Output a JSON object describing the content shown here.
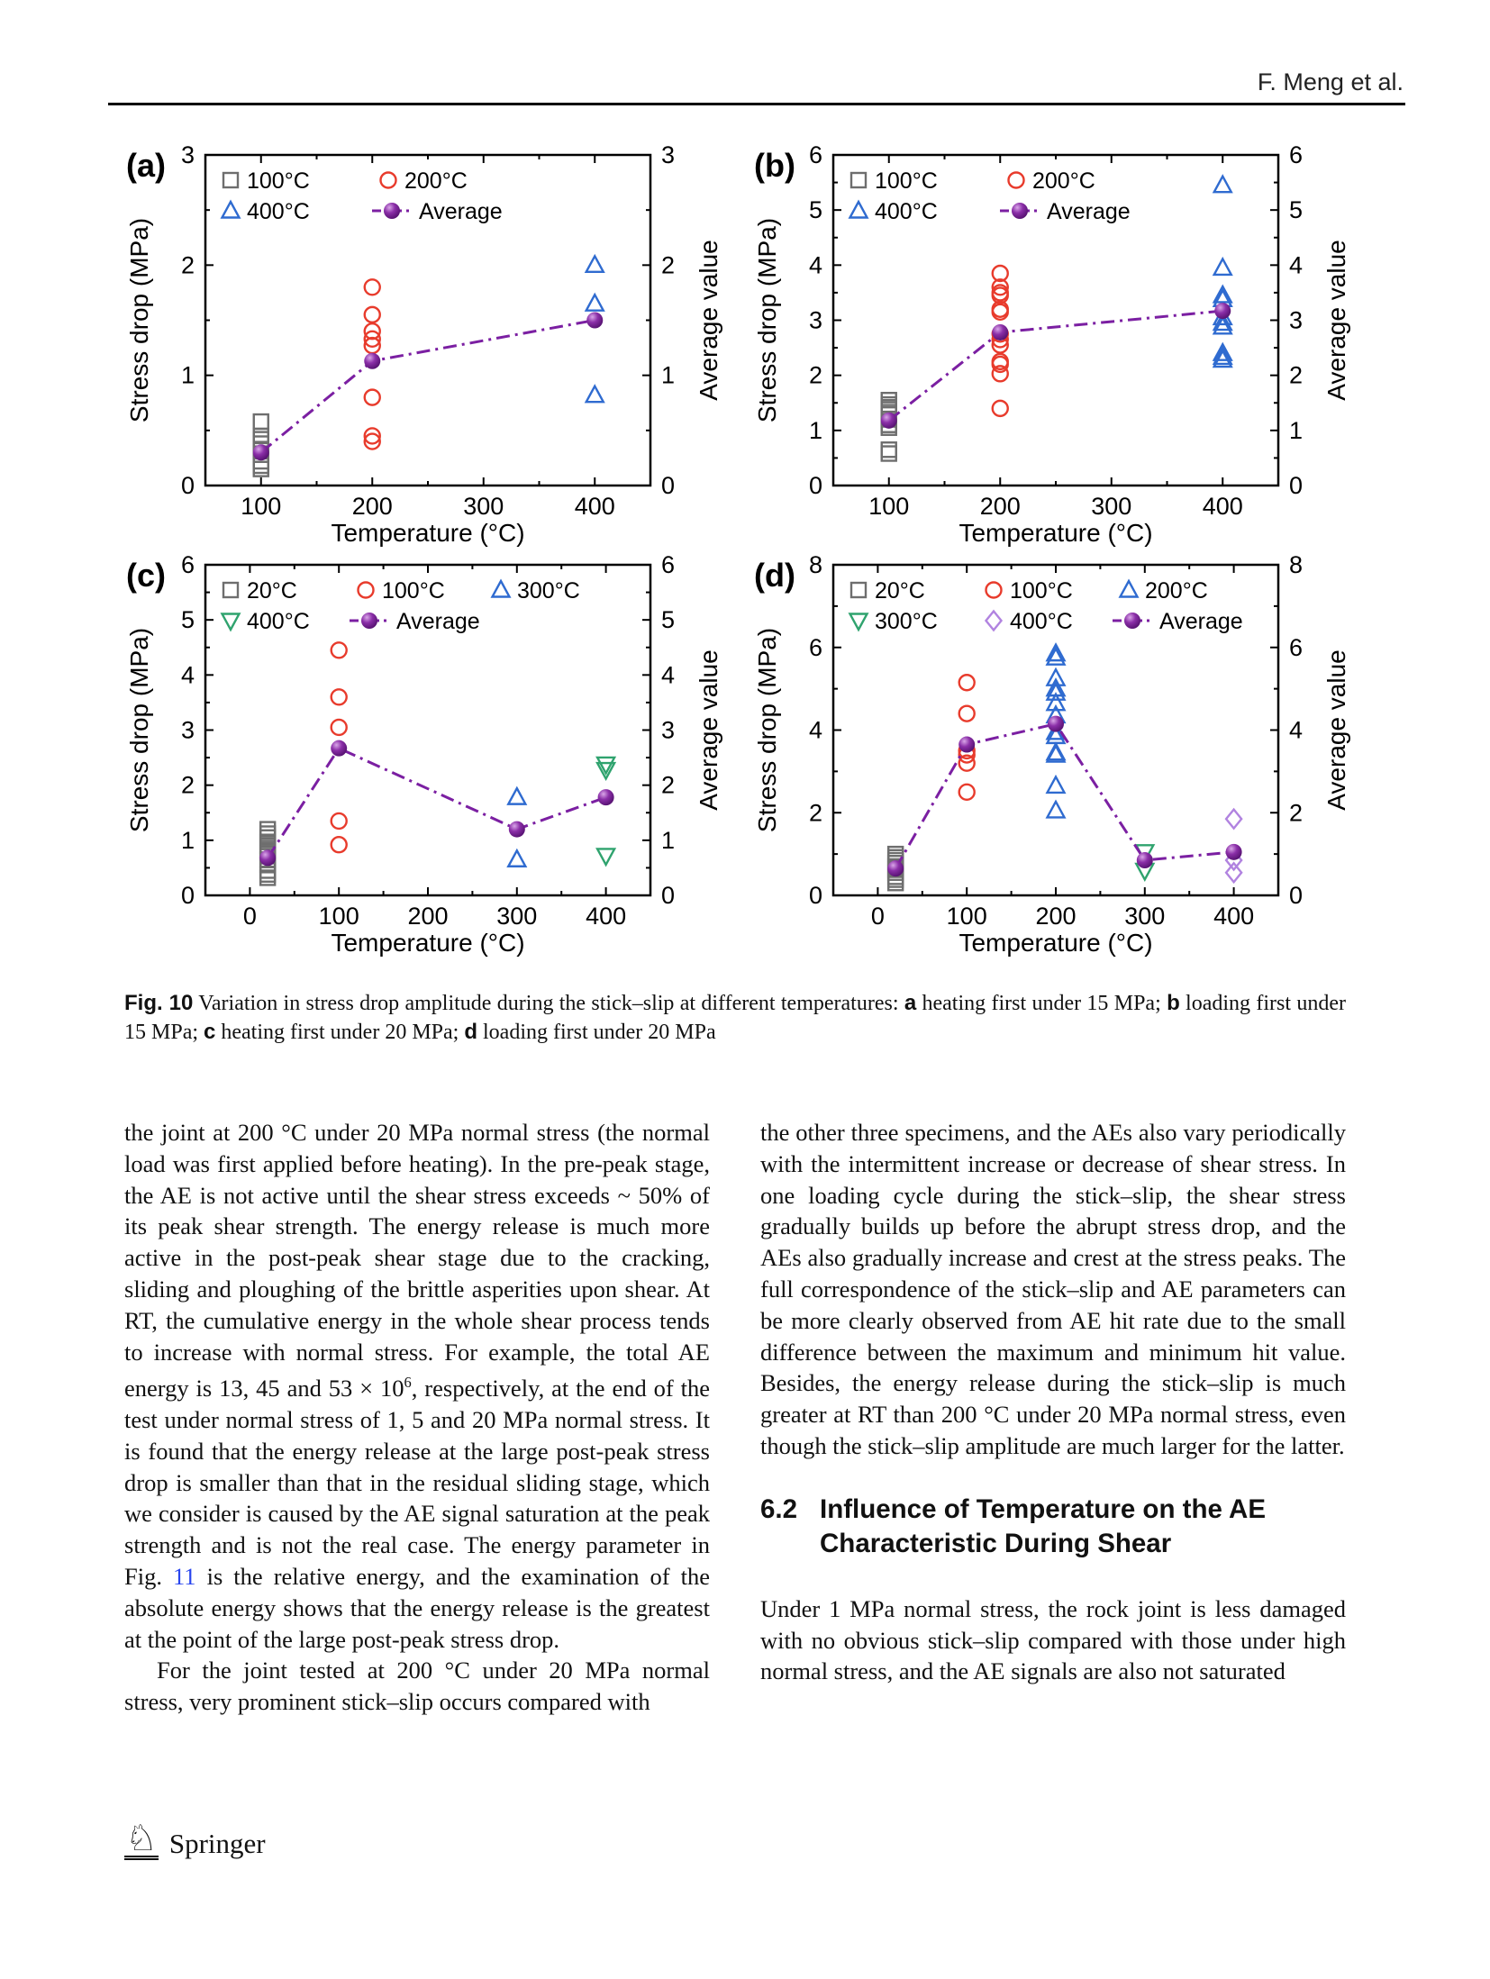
{
  "page": {
    "header_author": "F. Meng et al.",
    "footer": {
      "logo_text": "Springer",
      "horse_icon": "♘"
    },
    "link_color": "#2a46ee"
  },
  "figure": {
    "caption": [
      {
        "t": "figlab",
        "s": "Fig. 10"
      },
      {
        "t": "n",
        "s": "  Variation in stress drop amplitude during the stick–slip at different temperatures: "
      },
      {
        "t": "panlet",
        "s": "a"
      },
      {
        "t": "n",
        "s": " heating first under 15 MPa; "
      },
      {
        "t": "panlet",
        "s": "b"
      },
      {
        "t": "n",
        "s": " loading first under 15 MPa; "
      },
      {
        "t": "panlet",
        "s": "c"
      },
      {
        "t": "n",
        "s": " heating first under 20 MPa; "
      },
      {
        "t": "panlet",
        "s": "d"
      },
      {
        "t": "n",
        "s": " loading first under 20 MPa"
      }
    ]
  },
  "chart_data": [
    {
      "panel": "(a)",
      "type": "scatter",
      "xlabel": "Temperature (°C)",
      "ylabel_left": "Stress drop (MPa)",
      "ylabel_right": "Average value",
      "xlim": [
        50,
        450
      ],
      "xticks": [
        100,
        200,
        300,
        400
      ],
      "xminor": 50,
      "ylim": [
        0,
        3
      ],
      "yticks": [
        0,
        1,
        2,
        3
      ],
      "yminor": 0.5,
      "legend_rows": [
        [
          "100°C",
          "200°C"
        ],
        [
          "400°C",
          "Average"
        ]
      ],
      "legend_cols": [
        0,
        175
      ],
      "series": [
        {
          "label": "100°C",
          "marker": "square",
          "color": "#6e6e6e",
          "x": 100,
          "y": [
            0.58,
            0.45,
            0.42,
            0.38,
            0.33,
            0.28,
            0.22,
            0.18,
            0.15
          ]
        },
        {
          "label": "200°C",
          "marker": "circle",
          "color": "#e83b2c",
          "x": 200,
          "y": [
            1.8,
            1.55,
            1.4,
            1.33,
            1.27,
            0.8,
            0.45,
            0.4
          ]
        },
        {
          "label": "400°C",
          "marker": "triangle-up",
          "color": "#2f6bd0",
          "x": 400,
          "y": [
            2.0,
            1.65,
            0.82
          ]
        },
        {
          "label": "Average",
          "marker": "average",
          "color": "#7b1fa2",
          "points": [
            [
              100,
              0.3
            ],
            [
              200,
              1.13
            ],
            [
              400,
              1.5
            ]
          ]
        }
      ]
    },
    {
      "panel": "(b)",
      "type": "scatter",
      "xlabel": "Temperature (°C)",
      "ylabel_left": "Stress drop (MPa)",
      "ylabel_right": "Average value",
      "xlim": [
        50,
        450
      ],
      "xticks": [
        100,
        200,
        300,
        400
      ],
      "xminor": 50,
      "ylim": [
        0,
        6
      ],
      "yticks": [
        0,
        1,
        2,
        3,
        4,
        5,
        6
      ],
      "yminor": 0.5,
      "legend_rows": [
        [
          "100°C",
          "200°C"
        ],
        [
          "400°C",
          "Average"
        ]
      ],
      "legend_cols": [
        0,
        175
      ],
      "series": [
        {
          "label": "100°C",
          "marker": "square",
          "color": "#6e6e6e",
          "x": 100,
          "y": [
            1.55,
            1.47,
            1.42,
            1.38,
            1.33,
            1.2,
            1.1,
            1.05,
            0.65,
            0.58
          ]
        },
        {
          "label": "200°C",
          "marker": "circle",
          "color": "#e83b2c",
          "x": 200,
          "y": [
            3.85,
            3.6,
            3.5,
            3.45,
            3.2,
            3.15,
            2.75,
            2.65,
            2.55,
            2.25,
            2.2,
            2.03,
            1.4
          ]
        },
        {
          "label": "400°C",
          "marker": "triangle-up",
          "color": "#2f6bd0",
          "x": 400,
          "y": [
            5.45,
            3.95,
            3.45,
            3.38,
            3.05,
            2.95,
            2.88,
            2.4,
            2.33,
            2.28
          ]
        },
        {
          "label": "Average",
          "marker": "average",
          "color": "#7b1fa2",
          "points": [
            [
              100,
              1.18
            ],
            [
              200,
              2.78
            ],
            [
              400,
              3.17
            ]
          ]
        }
      ]
    },
    {
      "panel": "(c)",
      "type": "scatter",
      "xlabel": "Temperature (°C)",
      "ylabel_left": "Stress drop (MPa)",
      "ylabel_right": "Average value",
      "xlim": [
        -50,
        450
      ],
      "xticks": [
        0,
        100,
        200,
        300,
        400
      ],
      "xminor": 50,
      "ylim": [
        0,
        6
      ],
      "yticks": [
        0,
        1,
        2,
        3,
        4,
        5,
        6
      ],
      "yminor": 0.5,
      "legend_rows": [
        [
          "20°C",
          "100°C",
          "300°C"
        ],
        [
          "400°C",
          "Average"
        ]
      ],
      "legend_cols": [
        0,
        150,
        300
      ],
      "series": [
        {
          "label": "20°C",
          "marker": "square",
          "color": "#6e6e6e",
          "x": 20,
          "y": [
            1.2,
            1.12,
            1.05,
            0.97,
            0.9,
            0.82,
            0.75,
            0.65,
            0.55,
            0.45,
            0.38,
            0.32
          ]
        },
        {
          "label": "100°C",
          "marker": "circle",
          "color": "#e83b2c",
          "x": 100,
          "y": [
            4.45,
            3.6,
            3.05,
            1.35,
            0.92
          ]
        },
        {
          "label": "300°C",
          "marker": "triangle-up",
          "color": "#2f6bd0",
          "x": 300,
          "y": [
            1.78,
            0.65
          ]
        },
        {
          "label": "400°C",
          "marker": "triangle-down",
          "color": "#2fa36e",
          "x": 400,
          "y": [
            2.38,
            2.28,
            0.72
          ]
        },
        {
          "label": "Average",
          "marker": "average",
          "color": "#7b1fa2",
          "points": [
            [
              20,
              0.68
            ],
            [
              100,
              2.67
            ],
            [
              300,
              1.2
            ],
            [
              400,
              1.78
            ]
          ]
        }
      ]
    },
    {
      "panel": "(d)",
      "type": "scatter",
      "xlabel": "Temperature (°C)",
      "ylabel_left": "Stress drop (MPa)",
      "ylabel_right": "Average value",
      "xlim": [
        -50,
        450
      ],
      "xticks": [
        0,
        100,
        200,
        300,
        400
      ],
      "xminor": 50,
      "ylim": [
        0,
        8
      ],
      "yticks": [
        0,
        2,
        4,
        6,
        8
      ],
      "yminor": 1,
      "legend_rows": [
        [
          "20°C",
          "100°C",
          "200°C"
        ],
        [
          "300°C",
          "400°C",
          "Average"
        ]
      ],
      "legend_cols": [
        0,
        150,
        300
      ],
      "series": [
        {
          "label": "20°C",
          "marker": "square",
          "color": "#6e6e6e",
          "x": 20,
          "y": [
            1.0,
            0.92,
            0.85,
            0.78,
            0.7,
            0.62,
            0.55,
            0.45,
            0.38,
            0.3
          ]
        },
        {
          "label": "100°C",
          "marker": "circle",
          "color": "#e83b2c",
          "x": 100,
          "y": [
            5.15,
            4.4,
            3.5,
            3.4,
            3.2,
            2.5
          ]
        },
        {
          "label": "200°C",
          "marker": "triangle-up",
          "color": "#2f6bd0",
          "x": 200,
          "y": [
            5.85,
            5.75,
            5.25,
            5.0,
            4.9,
            4.65,
            4.35,
            3.95,
            3.85,
            3.45,
            3.4,
            2.65,
            2.05
          ]
        },
        {
          "label": "300°C",
          "marker": "triangle-down",
          "color": "#2fa36e",
          "x": 300,
          "y": [
            1.05,
            0.6
          ]
        },
        {
          "label": "400°C",
          "marker": "diamond",
          "color": "#b183e0",
          "x": 400,
          "y": [
            1.85,
            0.85,
            0.55
          ]
        },
        {
          "label": "Average",
          "marker": "average",
          "color": "#7b1fa2",
          "points": [
            [
              20,
              0.65
            ],
            [
              100,
              3.65
            ],
            [
              200,
              4.15
            ],
            [
              300,
              0.85
            ],
            [
              400,
              1.05
            ]
          ]
        }
      ]
    }
  ],
  "body": {
    "left": {
      "p1": [
        {
          "t": "n",
          "s": "the joint at 200 °C under 20 MPa normal stress (the normal load was first applied before heating). In the pre-peak stage, the AE is not active until the shear stress exceeds ~ 50% of its peak shear strength. The energy release is much more active in the post-peak shear stage due to the cracking, sliding and ploughing of the brittle asperities upon shear. At RT, the cumulative energy in the whole shear process tends to increase with normal stress. For example, the total AE energy is 13, 45 and 53 × 10"
        },
        {
          "t": "sup",
          "s": "6"
        },
        {
          "t": "n",
          "s": ", respectively, at the end of the test under normal stress of 1, 5 and 20 MPa normal stress. It is found that the energy release at the large post-peak stress drop is smaller than that in the residual sliding stage, which we consider is caused by the AE signal saturation at the peak strength and is not the real case. The energy parameter in Fig. "
        },
        {
          "t": "link",
          "s": "11"
        },
        {
          "t": "n",
          "s": " is the relative energy, and the examination of the absolute energy shows that the energy release is the greatest at the point of the large post-peak stress drop."
        }
      ],
      "p2": "For the joint tested at 200 °C under 20 MPa normal stress, very prominent stick–slip occurs compared with"
    },
    "right": {
      "p1": "the other three specimens, and the AEs also vary periodically with the intermittent increase or decrease of shear stress. In one loading cycle during the stick–slip, the shear stress gradually builds up before the abrupt stress drop, and the AEs also gradually increase and crest at the stress peaks. The full correspondence of the stick–slip and AE parameters can be more clearly observed from AE hit rate due to the small difference between the maximum and minimum hit value. Besides, the energy release during the stick–slip is much greater at RT than 200 °C under 20 MPa normal stress, even though the stick–slip amplitude are much larger for the latter.",
      "heading_num": "6.2",
      "heading_text": "Influence of Temperature on the AE Characteristic During Shear",
      "p2": "Under 1 MPa normal stress, the rock joint is less damaged with no obvious stick–slip compared with those under high normal stress, and the AE signals are also not saturated"
    }
  }
}
